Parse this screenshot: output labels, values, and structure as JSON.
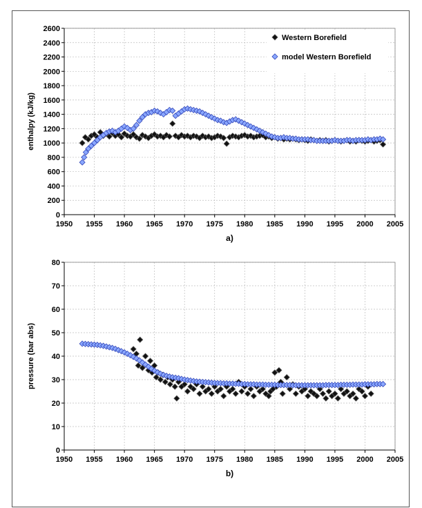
{
  "chart_data": [
    {
      "type": "scatter",
      "caption": "a)",
      "ylabel": "enthalpy (kJ/kg)",
      "xlabel": "",
      "xlim": [
        1950,
        2005
      ],
      "ylim": [
        0,
        2600
      ],
      "xticks": [
        1950,
        1955,
        1960,
        1965,
        1970,
        1975,
        1980,
        1985,
        1990,
        1995,
        2000,
        2005
      ],
      "yticks": [
        0,
        200,
        400,
        600,
        800,
        1000,
        1200,
        1400,
        1600,
        1800,
        2000,
        2200,
        2400,
        2600
      ],
      "grid": true,
      "legend_position": "top-right",
      "series": [
        {
          "name": "Western Borefield",
          "marker": "diamond",
          "color": "#000000",
          "x": [
            1953,
            1953.5,
            1954,
            1954.5,
            1955,
            1955.5,
            1956,
            1956.5,
            1957,
            1957.5,
            1958,
            1958.5,
            1959,
            1959.5,
            1960,
            1960.5,
            1961,
            1961.5,
            1962,
            1962.5,
            1963,
            1963.5,
            1964,
            1964.5,
            1965,
            1965.5,
            1966,
            1966.5,
            1967,
            1967.5,
            1968,
            1968.5,
            1969,
            1969.5,
            1970,
            1970.5,
            1971,
            1971.5,
            1972,
            1972.5,
            1973,
            1973.5,
            1974,
            1974.5,
            1975,
            1975.5,
            1976,
            1976.5,
            1977,
            1977.5,
            1978,
            1978.5,
            1979,
            1979.5,
            1980,
            1980.5,
            1981,
            1981.5,
            1982,
            1982.5,
            1983,
            1983.5,
            1984,
            1984.5,
            1985,
            1985.5,
            1986,
            1986.5,
            1987,
            1987.5,
            1988,
            1988.5,
            1989,
            1989.5,
            1990,
            1990.5,
            1991,
            1991.5,
            1992,
            1992.5,
            1993,
            1993.5,
            1994,
            1994.5,
            1995,
            1995.5,
            1996,
            1996.5,
            1997,
            1997.5,
            1998,
            1998.5,
            1999,
            1999.5,
            2000,
            2000.5,
            2001,
            2001.5,
            2002,
            2002.5,
            2003
          ],
          "y": [
            1000,
            1080,
            1050,
            1100,
            1120,
            1080,
            1150,
            1100,
            1130,
            1090,
            1140,
            1100,
            1120,
            1080,
            1130,
            1100,
            1090,
            1120,
            1080,
            1060,
            1110,
            1090,
            1070,
            1100,
            1120,
            1090,
            1100,
            1080,
            1110,
            1090,
            1270,
            1100,
            1080,
            1110,
            1090,
            1100,
            1080,
            1100,
            1090,
            1070,
            1100,
            1080,
            1090,
            1070,
            1080,
            1100,
            1090,
            1070,
            990,
            1080,
            1100,
            1090,
            1080,
            1100,
            1110,
            1090,
            1100,
            1080,
            1090,
            1100,
            1110,
            1080,
            1090,
            1070,
            1080,
            1060,
            1070,
            1050,
            1060,
            1050,
            1060,
            1050,
            1040,
            1050,
            1040,
            1030,
            1050,
            1040,
            1030,
            1040,
            1030,
            1040,
            1020,
            1030,
            1040,
            1030,
            1020,
            1030,
            1040,
            1020,
            1030,
            1020,
            1040,
            1030,
            1020,
            1030,
            1040,
            1020,
            1030,
            1040,
            980
          ]
        },
        {
          "name": "model Western Borefield",
          "marker": "diamond",
          "color": "#4f6fd8",
          "x": [
            1953,
            1953.3,
            1953.6,
            1954,
            1954.5,
            1955,
            1955.5,
            1956,
            1956.5,
            1957,
            1957.5,
            1958,
            1958.5,
            1959,
            1959.5,
            1960,
            1960.5,
            1961,
            1961.5,
            1962,
            1962.5,
            1963,
            1963.5,
            1964,
            1964.5,
            1965,
            1965.5,
            1966,
            1966.5,
            1967,
            1967.5,
            1968,
            1968.5,
            1969,
            1969.5,
            1970,
            1970.5,
            1971,
            1971.5,
            1972,
            1972.5,
            1973,
            1973.5,
            1974,
            1974.5,
            1975,
            1975.5,
            1976,
            1976.5,
            1977,
            1977.5,
            1978,
            1978.5,
            1979,
            1979.5,
            1980,
            1980.5,
            1981,
            1981.5,
            1982,
            1982.5,
            1983,
            1983.5,
            1984,
            1984.5,
            1985,
            1985.5,
            1986,
            1986.5,
            1987,
            1987.5,
            1988,
            1988.5,
            1989,
            1989.5,
            1990,
            1990.5,
            1991,
            1991.5,
            1992,
            1992.5,
            1993,
            1993.5,
            1994,
            1994.5,
            1995,
            1995.5,
            1996,
            1996.5,
            1997,
            1997.5,
            1998,
            1998.5,
            1999,
            1999.5,
            2000,
            2000.5,
            2001,
            2001.5,
            2002,
            2002.5,
            2003
          ],
          "y": [
            730,
            800,
            870,
            920,
            960,
            1000,
            1040,
            1080,
            1110,
            1140,
            1160,
            1170,
            1150,
            1170,
            1200,
            1230,
            1210,
            1180,
            1200,
            1250,
            1310,
            1360,
            1400,
            1420,
            1430,
            1450,
            1440,
            1420,
            1400,
            1430,
            1460,
            1450,
            1380,
            1410,
            1440,
            1470,
            1480,
            1470,
            1460,
            1450,
            1440,
            1420,
            1400,
            1380,
            1360,
            1340,
            1320,
            1310,
            1290,
            1280,
            1300,
            1320,
            1330,
            1310,
            1290,
            1270,
            1250,
            1230,
            1210,
            1190,
            1170,
            1150,
            1130,
            1110,
            1090,
            1080,
            1070,
            1070,
            1080,
            1070,
            1070,
            1060,
            1060,
            1050,
            1050,
            1050,
            1050,
            1040,
            1040,
            1030,
            1030,
            1030,
            1030,
            1030,
            1030,
            1040,
            1030,
            1030,
            1030,
            1040,
            1040,
            1030,
            1040,
            1040,
            1040,
            1040,
            1050,
            1040,
            1050,
            1050,
            1060,
            1050
          ]
        }
      ]
    },
    {
      "type": "scatter",
      "caption": "b)",
      "ylabel": "pressure (bar abs)",
      "xlabel": "",
      "xlim": [
        1950,
        2005
      ],
      "ylim": [
        0,
        80
      ],
      "xticks": [
        1950,
        1955,
        1960,
        1965,
        1970,
        1975,
        1980,
        1985,
        1990,
        1995,
        2000,
        2005
      ],
      "yticks": [
        0,
        10,
        20,
        30,
        40,
        50,
        60,
        70,
        80
      ],
      "grid": true,
      "series": [
        {
          "name": "",
          "marker": "diamond",
          "color": "#000000",
          "x": [
            1961.5,
            1962,
            1962.3,
            1962.6,
            1963,
            1963.5,
            1964,
            1964.3,
            1964.6,
            1965,
            1965.3,
            1965.6,
            1966,
            1966.4,
            1966.8,
            1967.2,
            1967.6,
            1968,
            1968.4,
            1968.7,
            1969,
            1969.5,
            1970,
            1970.5,
            1971,
            1971.5,
            1972,
            1972.5,
            1973,
            1973.5,
            1974,
            1974.5,
            1975,
            1975.5,
            1976,
            1976.5,
            1977,
            1977.5,
            1978,
            1978.5,
            1979,
            1979.5,
            1980,
            1980.5,
            1981,
            1981.5,
            1982,
            1982.5,
            1983,
            1983.5,
            1984,
            1984.3,
            1984.7,
            1985,
            1985.3,
            1985.7,
            1986,
            1986.3,
            1987,
            1987.5,
            1988,
            1988.5,
            1989,
            1989.5,
            1990,
            1990.5,
            1991,
            1991.5,
            1992,
            1992.5,
            1993,
            1993.5,
            1994,
            1994.5,
            1995,
            1995.5,
            1996,
            1996.5,
            1997,
            1997.5,
            1998,
            1998.5,
            1999,
            1999.5,
            2000,
            2000.5,
            2001
          ],
          "y": [
            43,
            41,
            36,
            47,
            35,
            40,
            34,
            38,
            33,
            36,
            31,
            33,
            30,
            32,
            29,
            31,
            28,
            30,
            27,
            22,
            29,
            27,
            28,
            25,
            27,
            26,
            28,
            24,
            27,
            25,
            26,
            24,
            27,
            25,
            26,
            23,
            27,
            25,
            26,
            24,
            29,
            25,
            27,
            24,
            26,
            23,
            27,
            25,
            26,
            24,
            23,
            25,
            26,
            33,
            27,
            34,
            29,
            24,
            31,
            26,
            28,
            24,
            27,
            25,
            26,
            23,
            25,
            24,
            23,
            26,
            24,
            22,
            25,
            23,
            24,
            22,
            26,
            24,
            25,
            23,
            24,
            22,
            26,
            25,
            23,
            27,
            24
          ]
        },
        {
          "name": "",
          "marker": "diamond",
          "color": "#4f6fd8",
          "x": [
            1953,
            1953.5,
            1954,
            1954.5,
            1955,
            1955.5,
            1956,
            1956.5,
            1957,
            1957.5,
            1958,
            1958.5,
            1959,
            1959.5,
            1960,
            1960.5,
            1961,
            1961.5,
            1962,
            1962.5,
            1963,
            1963.5,
            1964,
            1964.5,
            1965,
            1965.5,
            1966,
            1966.5,
            1967,
            1967.5,
            1968,
            1968.5,
            1969,
            1969.5,
            1970,
            1970.5,
            1971,
            1971.5,
            1972,
            1972.5,
            1973,
            1973.5,
            1974,
            1974.5,
            1975,
            1975.5,
            1976,
            1976.5,
            1977,
            1977.5,
            1978,
            1978.5,
            1979,
            1979.5,
            1980,
            1980.5,
            1981,
            1981.5,
            1982,
            1982.5,
            1983,
            1983.5,
            1984,
            1984.5,
            1985,
            1985.5,
            1986,
            1986.5,
            1987,
            1987.5,
            1988,
            1988.5,
            1989,
            1989.5,
            1990,
            1990.5,
            1991,
            1991.5,
            1992,
            1992.5,
            1993,
            1993.5,
            1994,
            1994.5,
            1995,
            1995.5,
            1996,
            1996.5,
            1997,
            1997.5,
            1998,
            1998.5,
            1999,
            1999.5,
            2000,
            2000.5,
            2001,
            2001.5,
            2002,
            2002.5,
            2003
          ],
          "y": [
            45.3,
            45.2,
            45.1,
            45,
            44.9,
            44.8,
            44.6,
            44.4,
            44.1,
            43.8,
            43.5,
            43.1,
            42.6,
            42.1,
            41.6,
            41,
            40.4,
            39.7,
            39,
            38.2,
            37.3,
            36.4,
            35.5,
            34.6,
            33.8,
            33.1,
            32.5,
            32,
            31.6,
            31.3,
            31,
            30.8,
            30.6,
            30.3,
            30,
            29.8,
            29.6,
            29.4,
            29.2,
            29.1,
            29,
            28.9,
            28.8,
            28.7,
            28.6,
            28.5,
            28.5,
            28.4,
            28.4,
            28.3,
            28.3,
            28.2,
            28.2,
            28.1,
            28.1,
            28,
            28,
            28,
            27.9,
            27.9,
            27.9,
            27.8,
            27.8,
            27.8,
            27.8,
            27.7,
            27.7,
            27.7,
            27.7,
            27.7,
            27.6,
            27.6,
            27.6,
            27.6,
            27.6,
            27.6,
            27.6,
            27.6,
            27.6,
            27.6,
            27.6,
            27.7,
            27.7,
            27.7,
            27.7,
            27.7,
            27.8,
            27.8,
            27.8,
            27.8,
            27.9,
            27.9,
            27.9,
            27.9,
            28,
            28,
            28,
            28,
            28.1,
            28.1,
            28.1
          ]
        }
      ]
    }
  ]
}
